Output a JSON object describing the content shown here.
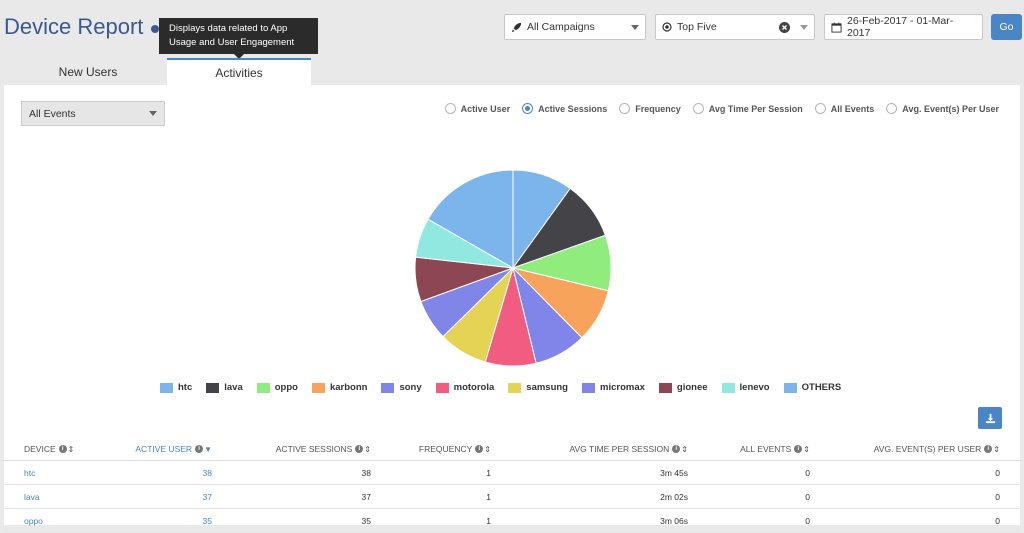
{
  "header": {
    "title": "Device Report",
    "tooltip_line1": "Displays data related to App",
    "tooltip_line2": "Usage and User Engagement",
    "campaign": "All Campaigns",
    "top_filter": "Top Five",
    "date_range": "26-Feb-2017 - 01-Mar-2017",
    "go_label": "Go"
  },
  "tabs": [
    {
      "label": "New Users"
    },
    {
      "label": "Activities"
    }
  ],
  "panel": {
    "events_select": "All Events",
    "radios": [
      {
        "label": "Active User",
        "selected": false
      },
      {
        "label": "Active Sessions",
        "selected": true
      },
      {
        "label": "Frequency",
        "selected": false
      },
      {
        "label": "Avg Time Per Session",
        "selected": false
      },
      {
        "label": "All Events",
        "selected": false
      },
      {
        "label": "Avg. Event(s) Per User",
        "selected": false
      }
    ]
  },
  "chart_data": {
    "type": "pie",
    "categories": [
      "htc",
      "lava",
      "oppo",
      "karbonn",
      "sony",
      "motorola",
      "samsung",
      "micromax",
      "gionee",
      "lenevo",
      "OTHERS"
    ],
    "values": [
      38,
      37,
      35,
      34,
      33,
      32,
      31,
      26,
      28,
      25,
      64
    ],
    "colors": [
      "#7cb5ec",
      "#434348",
      "#90ed7d",
      "#f7a35c",
      "#8085e9",
      "#f15c80",
      "#e4d354",
      "#8085e8",
      "#8d4653",
      "#91e8e1",
      "#7cb5ec"
    ],
    "legend_position": "bottom"
  },
  "table": {
    "headers": [
      "DEVICE",
      "ACTIVE USER",
      "ACTIVE SESSIONS",
      "FREQUENCY",
      "AVG TIME PER SESSION",
      "ALL EVENTS",
      "AVG. EVENT(S) PER USER"
    ],
    "rows": [
      [
        "htc",
        "38",
        "38",
        "1",
        "3m 45s",
        "0",
        "0"
      ],
      [
        "lava",
        "37",
        "37",
        "1",
        "2m 02s",
        "0",
        "0"
      ],
      [
        "oppo",
        "35",
        "35",
        "1",
        "3m 06s",
        "0",
        "0"
      ]
    ]
  }
}
